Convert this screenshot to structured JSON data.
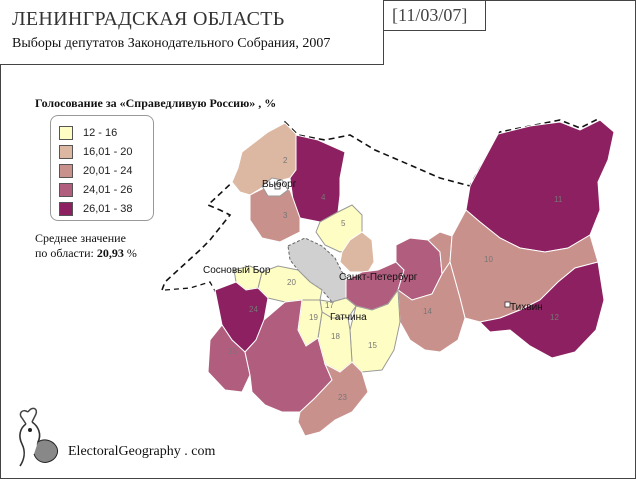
{
  "header": {
    "title": "ЛЕНИНГРАДСКАЯ ОБЛАСТЬ",
    "subtitle": "Выборы депутатов Законодательного Собрания, 2007",
    "date": "[11/03/07]"
  },
  "legend": {
    "title": "Голосование за «Справедливую Россию» , %",
    "items": [
      {
        "label": "12 - 16",
        "color": "#fefdc3"
      },
      {
        "label": "16,01 - 20",
        "color": "#dcb7a1"
      },
      {
        "label": "20,01 - 24",
        "color": "#c9918c"
      },
      {
        "label": "24,01 - 26",
        "color": "#b05d7e"
      },
      {
        "label": "26,01 - 38",
        "color": "#8c2060"
      }
    ]
  },
  "average": {
    "line1": "Среднее значение",
    "line2": "по области:",
    "value": "20,93",
    "unit": "%"
  },
  "map": {
    "cities": {
      "vyborg": "Выборг",
      "sosnovy_bor": "Сосновый Бор",
      "spb": "Санкт-Петербург",
      "gatchina": "Гатчина",
      "tikhvin": "Тихвин"
    },
    "regions": {
      "r2": "2",
      "r3": "3",
      "r4": "4",
      "r5": "5",
      "r10": "10",
      "r11": "11",
      "r12": "12",
      "r14": "14",
      "r15": "15",
      "r17": "17",
      "r18": "18",
      "r19": "19",
      "r20": "20",
      "r23": "23",
      "r24": "24",
      "r25": "25"
    }
  },
  "footer": {
    "site": "ElectoralGeography . com"
  }
}
